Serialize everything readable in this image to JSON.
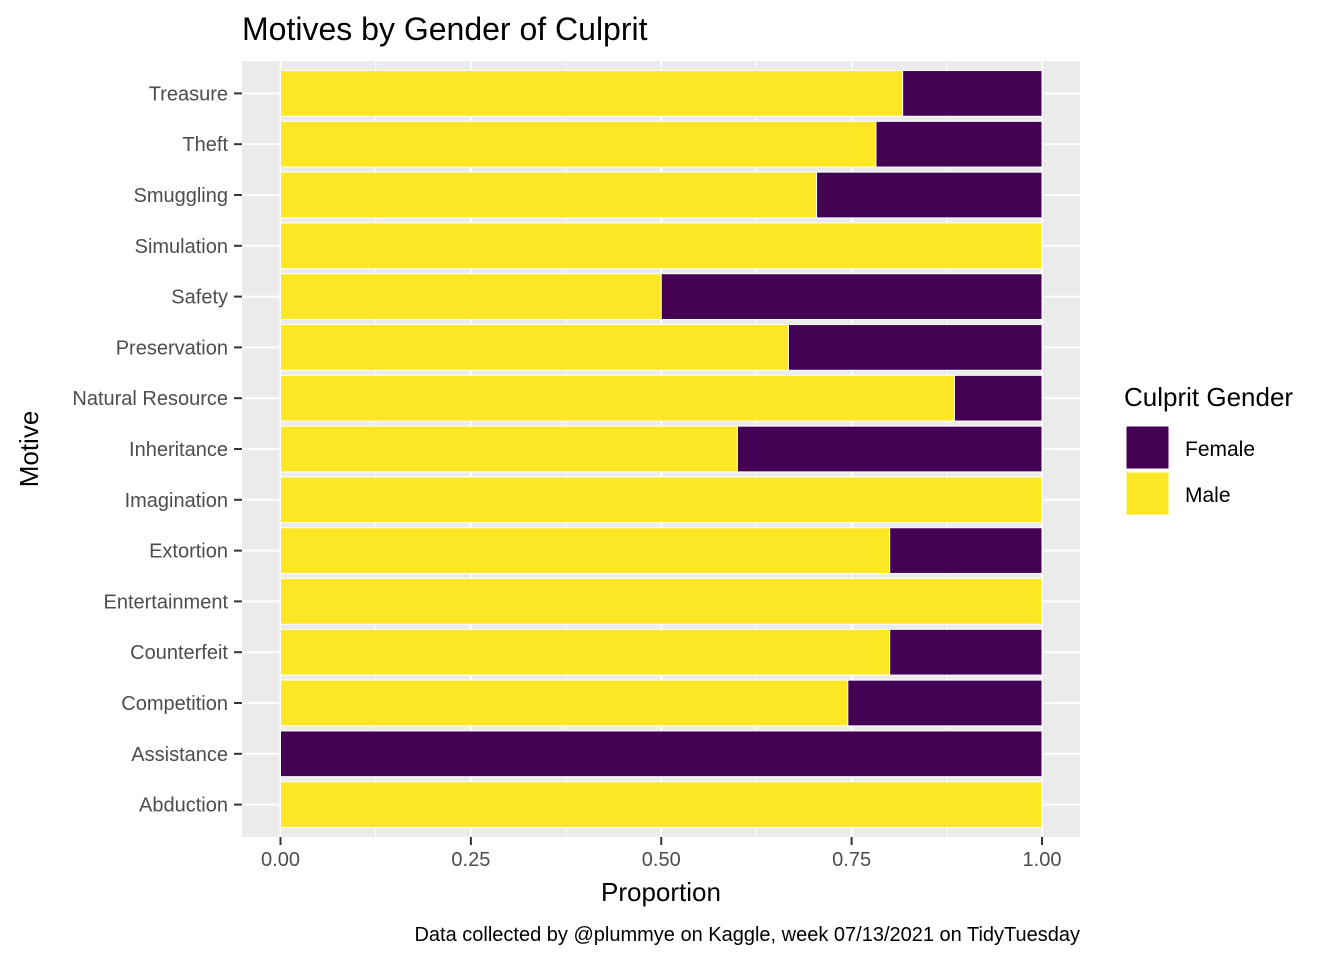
{
  "chart_data": {
    "type": "bar",
    "orientation": "horizontal",
    "stacked": true,
    "title": "Motives by Gender of Culprit",
    "xlabel": "Proportion",
    "ylabel": "Motive",
    "caption": "Data collected by @plummye on Kaggle, week 07/13/2021 on TidyTuesday",
    "xlim": [
      0,
      1
    ],
    "x_ticks": [
      "0.00",
      "0.25",
      "0.50",
      "0.75",
      "1.00"
    ],
    "grid": true,
    "legend": {
      "title": "Culprit Gender",
      "placement": "right"
    },
    "categories": [
      "Abduction",
      "Assistance",
      "Competition",
      "Counterfeit",
      "Entertainment",
      "Extortion",
      "Imagination",
      "Inheritance",
      "Natural Resource",
      "Preservation",
      "Safety",
      "Simulation",
      "Smuggling",
      "Theft",
      "Treasure"
    ],
    "series": [
      {
        "name": "Male",
        "color": "#FDE725",
        "values": [
          1.0,
          0.0,
          0.745,
          0.8,
          1.0,
          0.8,
          1.0,
          0.6,
          0.885,
          0.667,
          0.5,
          1.0,
          0.704,
          0.782,
          0.817
        ]
      },
      {
        "name": "Female",
        "color": "#440154",
        "values": [
          0.0,
          1.0,
          0.255,
          0.2,
          0.0,
          0.2,
          0.0,
          0.4,
          0.115,
          0.333,
          0.5,
          0.0,
          0.296,
          0.218,
          0.183
        ]
      }
    ],
    "legend_order": [
      "Female",
      "Male"
    ],
    "panel_background": "#EBEBEB",
    "grid_color": "#FFFFFF"
  }
}
